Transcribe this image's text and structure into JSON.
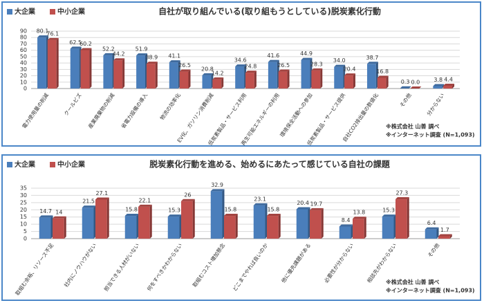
{
  "chart_data": [
    {
      "type": "bar",
      "title": "自社が取り組んでいる(取り組もうとしている)脱炭素化行動",
      "categories": [
        "電力使用量の削減",
        "クールビズ",
        "産業廃棄物の削減",
        "省電力設備の導入",
        "物流の効率化",
        "EV化、ガソリン消費削減",
        "低炭素製品・サービス利用",
        "再生可能エネルギーの利用",
        "環境保全活動への参加",
        "低炭素製品・サービス提供",
        "自社CO2排出量の数値化",
        "その他",
        "分からない"
      ],
      "series": [
        {
          "name": "大企業",
          "color": "#4a7ebb",
          "values": [
            80.1,
            62.5,
            52.2,
            51.9,
            41.1,
            20.8,
            34.6,
            41.6,
            44.9,
            34.0,
            38.7,
            0.3,
            3.8
          ],
          "value_labels": [
            "80.1",
            "62.5",
            "52.2",
            "51.9",
            "41.1",
            "20.8",
            "34.6",
            "41.6",
            "44.9",
            "34.0",
            "38.7",
            "0.3",
            "3.8"
          ]
        },
        {
          "name": "中小企業",
          "color": "#c0504d",
          "values": [
            76.1,
            60.2,
            44.2,
            38.9,
            26.5,
            14.2,
            24.8,
            26.5,
            28.3,
            20.4,
            16.8,
            0.0,
            4.4
          ],
          "value_labels": [
            "76.1",
            "60.2",
            "44.2",
            "38.9",
            "26.5",
            "14.2",
            "24.8",
            "26.5",
            "28.3",
            "20.4",
            "16.8",
            "0.0",
            "4.4"
          ]
        }
      ],
      "ylim": [
        0,
        90
      ],
      "yticks": [
        0,
        10,
        20,
        30,
        40,
        50,
        60,
        70,
        80,
        90
      ],
      "grid": true,
      "notes": [
        "※株式会社 山善 調べ",
        "※インターネット調査 (N=1,093)"
      ]
    },
    {
      "type": "bar",
      "title": "脱炭素化行動を進める、始めるにあたって感じている自社の課題",
      "categories": [
        "取組む余裕、リソース不足",
        "社内にノウハウがない",
        "担当できる人材がいない",
        "何をすべきかわからない",
        "取組むコスト増加懸念",
        "どこまでやれば良いのか",
        "他に優先課題がある",
        "必要性が分からない",
        "相談先がわからない",
        "その他"
      ],
      "series": [
        {
          "name": "大企業",
          "color": "#4a7ebb",
          "values": [
            14.7,
            21.5,
            15.8,
            15.3,
            32.9,
            23.1,
            20.4,
            8.4,
            15.3,
            6.4
          ]
        },
        {
          "name": "中小企業",
          "color": "#c0504d",
          "values": [
            14,
            27.1,
            22.1,
            26,
            15.8,
            15.8,
            19.7,
            13.8,
            27.3,
            1.7
          ]
        }
      ],
      "ylim": [
        0,
        35
      ],
      "yticks": [
        0,
        5,
        10,
        15,
        20,
        25,
        30,
        35
      ],
      "grid": true,
      "notes": [
        "※株式会社 山善 調べ",
        "※インターネット調査 (N=1,093)"
      ]
    }
  ]
}
